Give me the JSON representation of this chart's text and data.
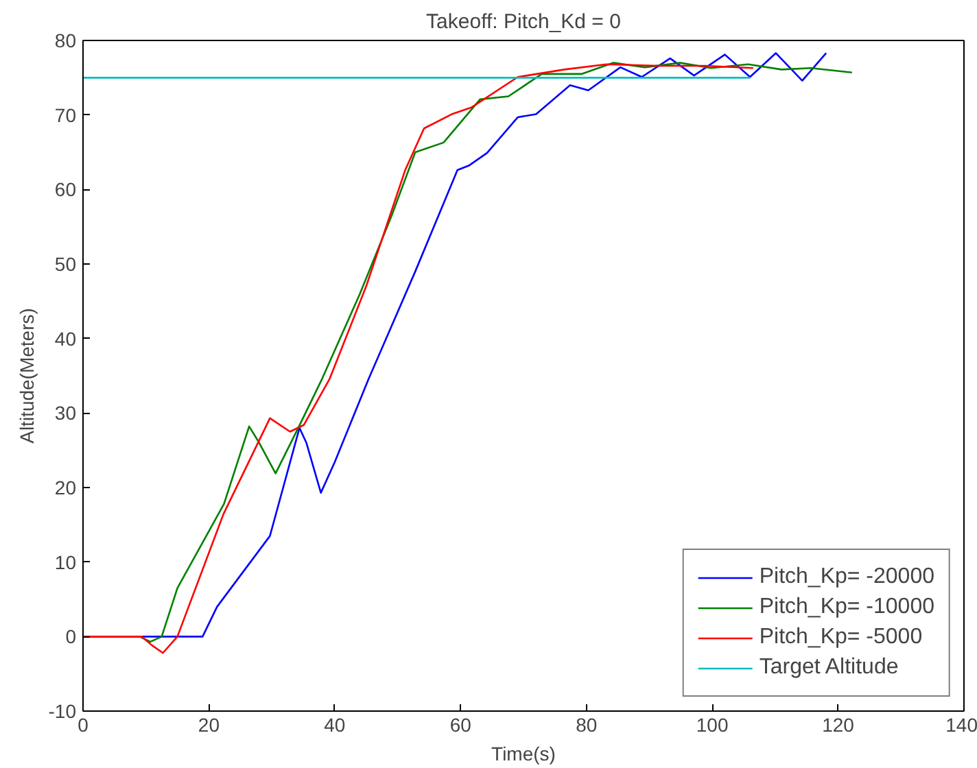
{
  "chart_data": {
    "type": "line",
    "title": "Takeoff: Pitch_Kd = 0",
    "xlabel": "Time(s)",
    "ylabel": "Altitude(Meters)",
    "xlim": [
      0,
      140
    ],
    "ylim": [
      -10,
      80
    ],
    "xticks": [
      0,
      20,
      40,
      60,
      80,
      100,
      120,
      140
    ],
    "yticks": [
      -10,
      0,
      10,
      20,
      30,
      40,
      50,
      60,
      70,
      80
    ],
    "grid": false,
    "legend": "bottom right",
    "line_style": "solid",
    "marker": "none",
    "series": [
      {
        "name": "Pitch_Kp= -20000",
        "color": "#0000ff",
        "x": [
          0,
          19,
          21.3,
          29.7,
          34.4,
          35.5,
          37.8,
          40,
          45.4,
          52.8,
          59.5,
          61.3,
          64.2,
          69.1,
          72,
          77.4,
          80.3,
          85.4,
          88.8,
          93.3,
          97.1,
          102,
          106,
          110.1,
          114.3,
          118.1
        ],
        "values": [
          0,
          0,
          4,
          13.5,
          28,
          26,
          19.3,
          23.4,
          34.6,
          49,
          62.6,
          63.2,
          64.9,
          69.7,
          70.1,
          74,
          73.3,
          76.4,
          75.1,
          77.6,
          75.3,
          78.1,
          75.1,
          78.3,
          74.6,
          78.3
        ]
      },
      {
        "name": "Pitch_Kp= -10000",
        "color": "#008000",
        "x": [
          0,
          9,
          10.7,
          12.5,
          15,
          22.4,
          26.4,
          28,
          30.6,
          34.2,
          38,
          44,
          49,
          52.8,
          57.3,
          63.1,
          67.6,
          72.9,
          79.2,
          84.3,
          89.3,
          94.9,
          99.8,
          105.7,
          111,
          115.7,
          122.2
        ],
        "values": [
          0,
          0,
          -0.7,
          0,
          6.5,
          17.8,
          28.2,
          26,
          21.9,
          28,
          34.6,
          46,
          56.4,
          65,
          66.3,
          72.1,
          72.5,
          75.5,
          75.5,
          77,
          76.4,
          77,
          76.3,
          76.8,
          76.1,
          76.3,
          75.7
        ]
      },
      {
        "name": "Pitch_Kp= -5000",
        "color": "#ff0000",
        "x": [
          0,
          9.3,
          11,
          12.7,
          15,
          22.3,
          29.7,
          32.9,
          35.1,
          39.2,
          45,
          51.2,
          54.2,
          58.6,
          61.7,
          69.1,
          76.5,
          83.2,
          91.5,
          98.9,
          106.5
        ],
        "values": [
          0,
          0,
          -1.2,
          -2.2,
          0,
          16.4,
          29.3,
          27.5,
          28.4,
          34.6,
          47,
          62.6,
          68.2,
          70.1,
          71,
          75.1,
          76.1,
          76.8,
          76.6,
          76.6,
          76.3
        ]
      },
      {
        "name": "Target Altitude",
        "color": "#00bfbf",
        "x": [
          0,
          106
        ],
        "values": [
          75,
          75
        ]
      }
    ]
  }
}
